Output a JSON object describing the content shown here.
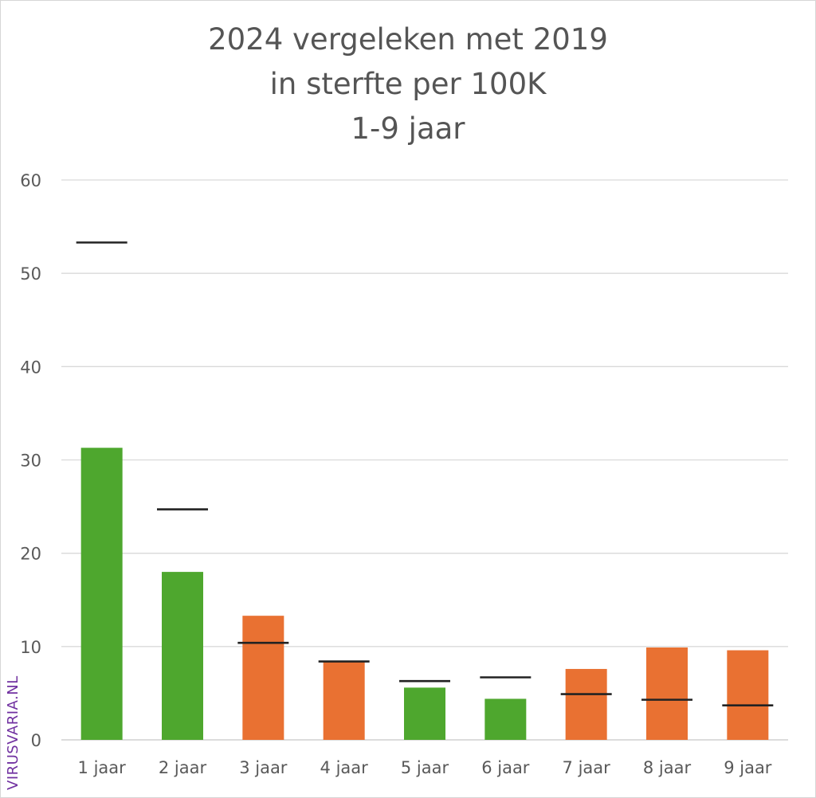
{
  "chart_data": {
    "type": "bar",
    "title_lines": [
      "2024 vergeleken met 2019",
      "in sterfte per 100K",
      "1-9 jaar"
    ],
    "categories": [
      "1 jaar",
      "2 jaar",
      "3 jaar",
      "4 jaar",
      "5 jaar",
      "6 jaar",
      "7 jaar",
      "8 jaar",
      "9 jaar"
    ],
    "series": [
      {
        "values": [
          31.3,
          18.0,
          13.3,
          8.4,
          5.6,
          4.4,
          7.6,
          9.9,
          9.6
        ]
      },
      {
        "values": [
          53.3,
          24.7,
          10.4,
          8.4,
          6.3,
          6.7,
          4.9,
          4.3,
          3.7
        ]
      }
    ],
    "bar_colors": [
      "#4ea72e",
      "#4ea72e",
      "#e97132",
      "#e97132",
      "#4ea72e",
      "#4ea72e",
      "#e97132",
      "#e97132",
      "#e97132"
    ],
    "marker_color": "#222222",
    "yticks": [
      0,
      10,
      20,
      30,
      40,
      50,
      60
    ],
    "ylim": [
      0,
      60
    ],
    "grid": true
  },
  "watermark": "VIRUSVARIA.NL"
}
